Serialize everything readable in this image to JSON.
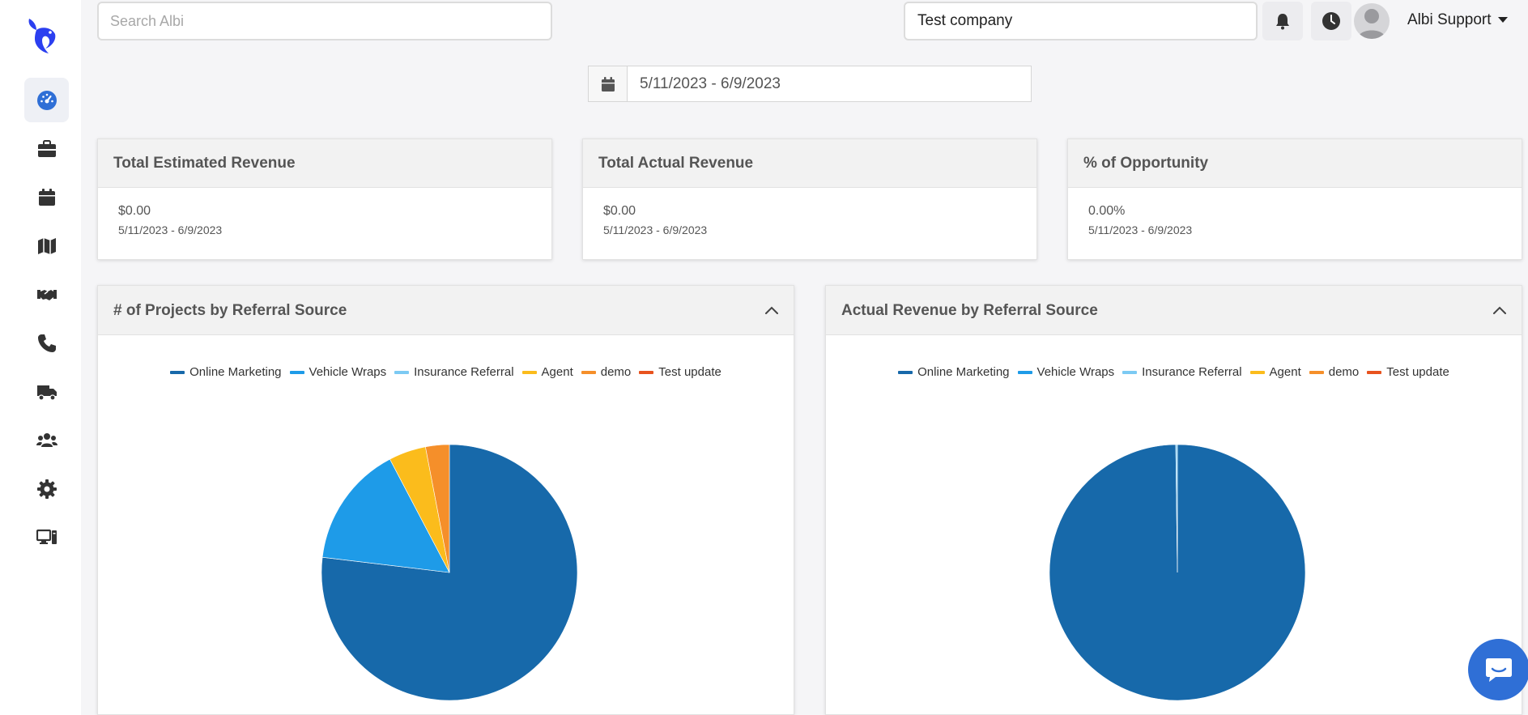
{
  "header": {
    "search_placeholder": "Search Albi",
    "company": "Test company",
    "user_name": "Albi Support"
  },
  "sidebar": {
    "items": [
      {
        "icon": "dashboard-gauge-icon",
        "active": true
      },
      {
        "icon": "briefcase-icon"
      },
      {
        "icon": "calendar-icon"
      },
      {
        "icon": "map-icon"
      },
      {
        "icon": "handshake-icon"
      },
      {
        "icon": "phone-icon"
      },
      {
        "icon": "truck-icon"
      },
      {
        "icon": "users-icon"
      },
      {
        "icon": "gear-icon"
      },
      {
        "icon": "desktop-icon"
      }
    ]
  },
  "date_range": "5/11/2023 - 6/9/2023",
  "cards": [
    {
      "title": "Total Estimated Revenue",
      "value": "$0.00",
      "range": "5/11/2023 - 6/9/2023"
    },
    {
      "title": "Total Actual Revenue",
      "value": "$0.00",
      "range": "5/11/2023 - 6/9/2023"
    },
    {
      "title": "% of Opportunity",
      "value": "0.00%",
      "range": "5/11/2023 - 6/9/2023"
    }
  ],
  "legend_colors": [
    "#1769aa",
    "#1e9be8",
    "#7ccaf3",
    "#fbbc1c",
    "#f58f2a",
    "#e8531e"
  ],
  "chart_data": [
    {
      "type": "pie",
      "title": "# of Projects by Referral Source",
      "categories": [
        "Online Marketing",
        "Vehicle Wraps",
        "Insurance Referral",
        "Agent",
        "demo",
        "Test update"
      ],
      "values": [
        76.9,
        15.4,
        0,
        4.7,
        3.0,
        0
      ]
    },
    {
      "type": "pie",
      "title": "Actual Revenue by Referral Source",
      "categories": [
        "Online Marketing",
        "Vehicle Wraps",
        "Insurance Referral",
        "Agent",
        "demo",
        "Test update"
      ],
      "values": [
        99.8,
        0,
        0.2,
        0,
        0,
        0
      ]
    }
  ]
}
